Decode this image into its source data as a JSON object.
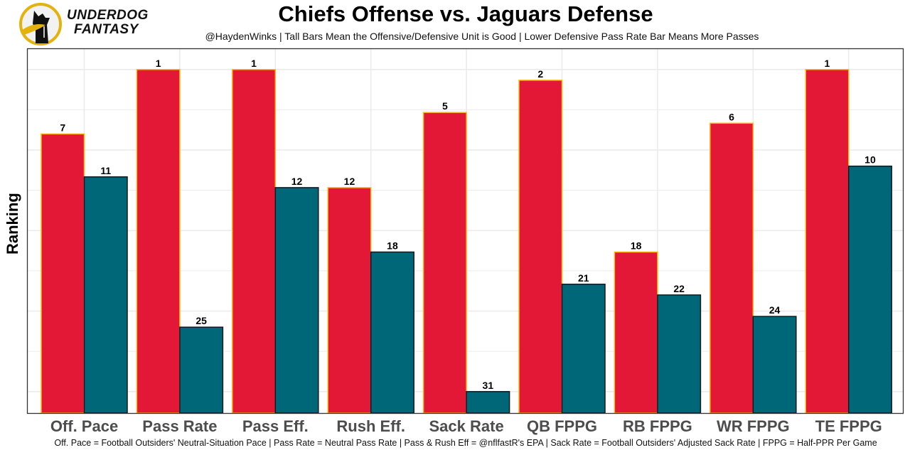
{
  "brand": {
    "line1": "UNDERDOG",
    "line2": "FANTASY",
    "logo_icon": "dog-silhouette-logo"
  },
  "chart_data": {
    "type": "bar",
    "title": "Chiefs Offense vs. Jaguars Defense",
    "subtitle": "@HaydenWinks | Tall Bars Mean the Offensive/Defensive Unit is Good | Lower Defensive Pass Rate Bar Means More Passes",
    "xlabel": "",
    "ylabel": "Ranking",
    "caption": "Off. Pace = Football Outsiders' Neutral-Situation Pace | Pass Rate = Neutral Pass Rate | Pass & Rush Eff = @nflfastR's EPA | Sack Rate = Football Outsiders' Adjusted Sack Rate | FPPG = Half-PPR Per Game",
    "categories": [
      "Off. Pace",
      "Pass Rate",
      "Pass Eff.",
      "Rush Eff.",
      "Sack Rate",
      "QB FPPG",
      "RB FPPG",
      "WR FPPG",
      "TE FPPG"
    ],
    "series": [
      {
        "name": "Chiefs Offense",
        "values": [
          7,
          1,
          1,
          12,
          5,
          2,
          18,
          6,
          1
        ],
        "color": "#E31837",
        "outline": "#FFB612"
      },
      {
        "name": "Jaguars Defense",
        "values": [
          11,
          25,
          12,
          18,
          31,
          21,
          22,
          24,
          10
        ],
        "color": "#006778",
        "outline": "#101820"
      }
    ],
    "y_reversed_rank": true,
    "ylim_rank": [
      33,
      0
    ],
    "grid": true,
    "legend": "none"
  }
}
